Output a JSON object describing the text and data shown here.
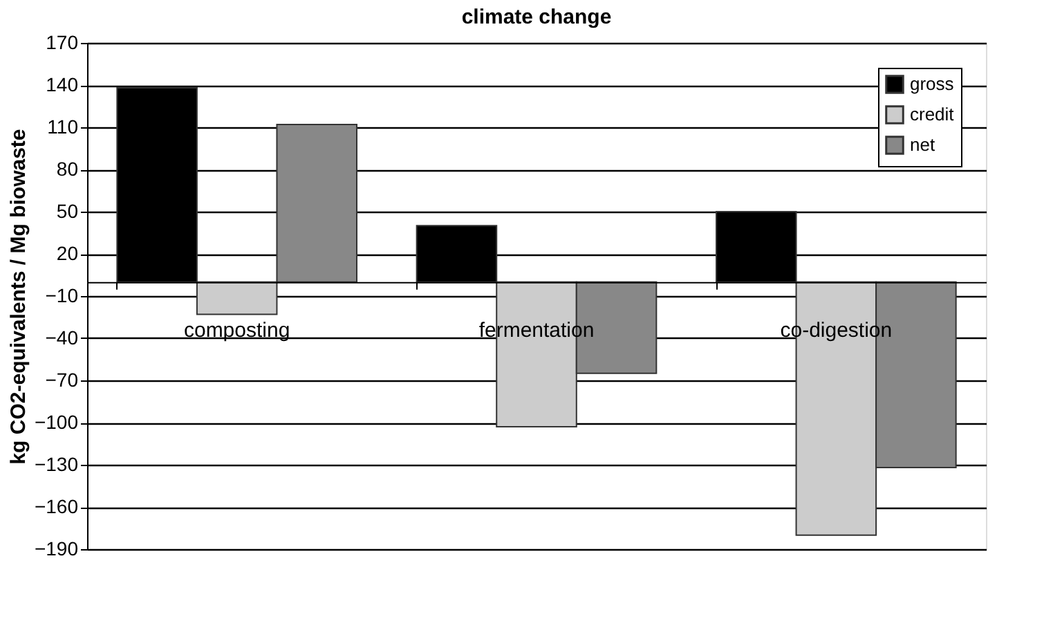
{
  "chart_data": {
    "type": "bar",
    "title": "climate change",
    "ylabel": "kg CO2-equivalents / Mg biowaste",
    "categories": [
      "composting",
      "fermentation",
      "co-digestion"
    ],
    "series": [
      {
        "name": "gross",
        "color": "#000000",
        "values": [
          138,
          40,
          50
        ]
      },
      {
        "name": "credit",
        "color": "#cccccc",
        "values": [
          -23,
          -103,
          -180
        ]
      },
      {
        "name": "net",
        "color": "#888888",
        "values": [
          112,
          -65,
          -132
        ]
      }
    ],
    "ylim": [
      -190,
      170
    ],
    "yticks": [
      -190,
      -160,
      -130,
      -100,
      -70,
      -40,
      -10,
      20,
      50,
      80,
      110,
      140,
      170
    ],
    "grid": "y",
    "legend": "top right"
  }
}
